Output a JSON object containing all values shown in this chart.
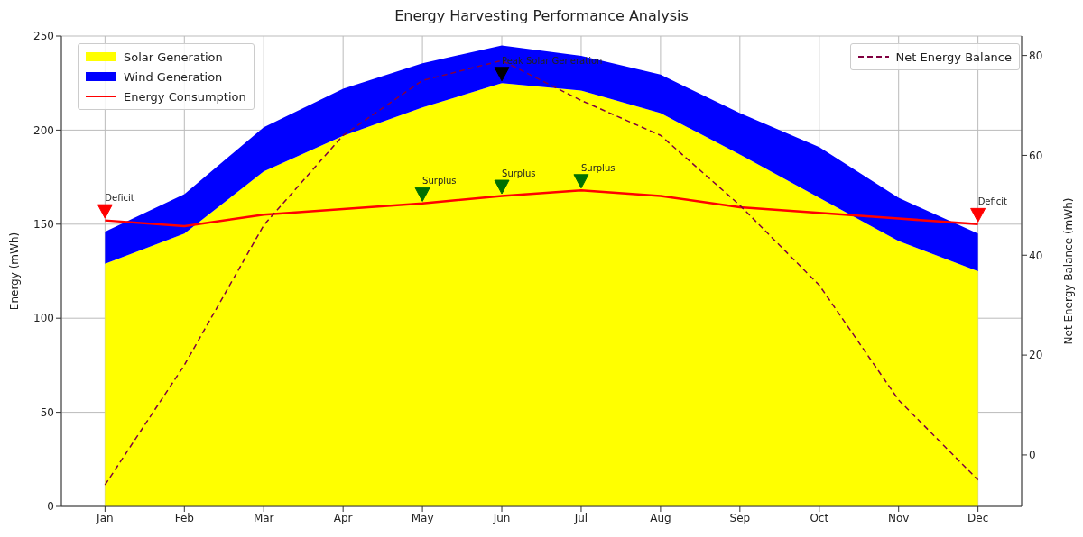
{
  "chart_data": {
    "type": "area",
    "title": "Energy Harvesting Performance Analysis",
    "ylabel": "Energy (mWh)",
    "y2label": "Net Energy Balance (mWh)",
    "categories": [
      "Jan",
      "Feb",
      "Mar",
      "Apr",
      "May",
      "Jun",
      "Jul",
      "Aug",
      "Sep",
      "Oct",
      "Nov",
      "Dec"
    ],
    "stacked": true,
    "grid": true,
    "legend": "top left",
    "marker": "none",
    "ylim": [
      0,
      250
    ],
    "yticks": [
      0,
      50,
      100,
      150,
      200,
      250
    ],
    "y2lim": [
      -10.3,
      83.9
    ],
    "y2ticks": [
      0,
      20,
      40,
      60,
      80
    ],
    "series": [
      {
        "name": "Solar Generation",
        "color": "#ffff00",
        "values": [
          129,
          145,
          178,
          197,
          212,
          225,
          221,
          209,
          187,
          164,
          141,
          125
        ]
      },
      {
        "name": "Wind Generation",
        "color": "#0000ff",
        "values": [
          17,
          21,
          23.5,
          25,
          23.5,
          20,
          18.5,
          20.5,
          22,
          27,
          23,
          20
        ]
      },
      {
        "name": "Energy Consumption",
        "type": "line",
        "color": "#ff0000",
        "values": [
          152,
          149,
          155,
          158,
          161,
          165,
          168,
          165,
          159,
          156,
          153,
          150
        ]
      },
      {
        "name": "Net Energy Balance",
        "type": "line",
        "axis": "y2",
        "color": "#800040",
        "line_style": "dashed",
        "values": [
          -6,
          18,
          46,
          64,
          75,
          79,
          71,
          64,
          50,
          34,
          11,
          -5
        ]
      },
      {
        "type": "scatter",
        "marker": "triangle",
        "color": "#ff0000",
        "x": [
          "Jan",
          "Dec"
        ],
        "values": [
          157,
          155
        ]
      },
      {
        "type": "scatter",
        "marker": "triangle",
        "color": "#007000",
        "x": [
          "May",
          "Jun",
          "Jul"
        ],
        "values": [
          166,
          170,
          173
        ]
      },
      {
        "type": "scatter",
        "marker": "triangle",
        "color": "#000000",
        "x": [
          "Jun"
        ],
        "values": [
          230
        ]
      }
    ],
    "annotations": [
      {
        "text": "Deficit",
        "x": "Jan",
        "y": 157
      },
      {
        "text": "Surplus",
        "x": "May",
        "y": 166
      },
      {
        "text": "Surplus",
        "x": "Jun",
        "y": 170
      },
      {
        "text": "Surplus",
        "x": "Jul",
        "y": 173
      },
      {
        "text": "Peak Solar Generation",
        "x": "Jun",
        "y": 230
      },
      {
        "text": "Deficit",
        "x": "Dec",
        "y": 155
      }
    ]
  }
}
